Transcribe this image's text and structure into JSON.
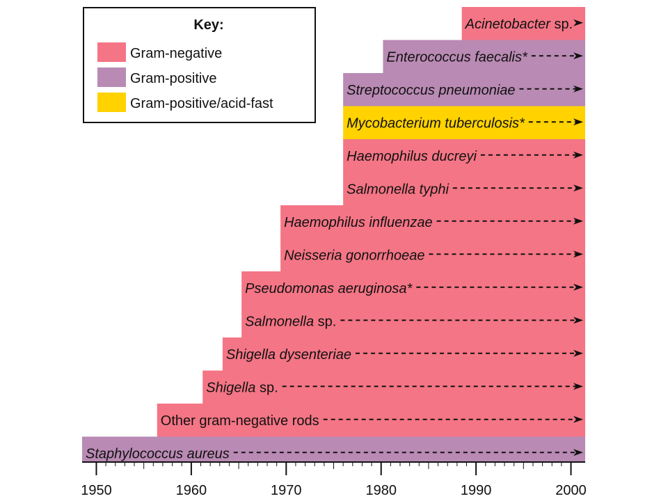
{
  "chart_data": {
    "type": "bar",
    "orientation": "horizontal-timeline",
    "x_ticks": [
      1950,
      1960,
      1970,
      1980,
      1990,
      2000
    ],
    "xlim": [
      1948.5,
      2001.5
    ],
    "colors": {
      "gram_negative": "#F47585",
      "gram_positive": "#B98AB4",
      "gram_positive_acid_fast": "#FFD200"
    },
    "legend": {
      "title": "Key:",
      "position": "top-left",
      "entries": [
        {
          "type": "gram_negative",
          "label": "Gram-negative"
        },
        {
          "type": "gram_positive",
          "label": "Gram-positive"
        },
        {
          "type": "gram_positive_acid_fast",
          "label": "Gram-positive/acid-fast"
        }
      ]
    },
    "bars": [
      {
        "italic": "Acinetobacter",
        "rest": " sp.",
        "start": 1988.5,
        "end": 2001.5,
        "type": "gram_negative"
      },
      {
        "italic": "Enterococcus faecalis*",
        "rest": "",
        "start": 1980.2,
        "end": 2001.5,
        "type": "gram_positive"
      },
      {
        "italic": "Streptococcus pneumoniae",
        "rest": "",
        "start": 1976,
        "end": 2001.5,
        "type": "gram_positive"
      },
      {
        "italic": "Mycobacterium tuberculosis*",
        "rest": "",
        "start": 1976,
        "end": 2001.5,
        "type": "gram_positive_acid_fast"
      },
      {
        "italic": "Haemophilus ducreyi",
        "rest": "",
        "start": 1976,
        "end": 2001.5,
        "type": "gram_negative"
      },
      {
        "italic": "Salmonella typhi",
        "rest": "",
        "start": 1976,
        "end": 2001.5,
        "type": "gram_negative"
      },
      {
        "italic": "Haemophilus influenzae",
        "rest": "",
        "start": 1969.4,
        "end": 2001.5,
        "type": "gram_negative"
      },
      {
        "italic": "Neisseria gonorrhoeae",
        "rest": "",
        "start": 1969.4,
        "end": 2001.5,
        "type": "gram_negative"
      },
      {
        "italic": "Pseudomonas aeruginosa*",
        "rest": "",
        "start": 1965.3,
        "end": 2001.5,
        "type": "gram_negative"
      },
      {
        "italic": "Salmonella",
        "rest": " sp.",
        "start": 1965.3,
        "end": 2001.5,
        "type": "gram_negative"
      },
      {
        "italic": "Shigella dysenteriae",
        "rest": "",
        "start": 1963.3,
        "end": 2001.5,
        "type": "gram_negative"
      },
      {
        "italic": "Shigella",
        "rest": " sp.",
        "start": 1961.2,
        "end": 2001.5,
        "type": "gram_negative"
      },
      {
        "italic": "",
        "rest": "Other gram-negative rods",
        "start": 1956.4,
        "end": 2001.5,
        "type": "gram_negative"
      },
      {
        "italic": "Staphylococcus aureus",
        "rest": "",
        "start": 1948.5,
        "end": 2001.5,
        "type": "gram_positive"
      }
    ]
  }
}
